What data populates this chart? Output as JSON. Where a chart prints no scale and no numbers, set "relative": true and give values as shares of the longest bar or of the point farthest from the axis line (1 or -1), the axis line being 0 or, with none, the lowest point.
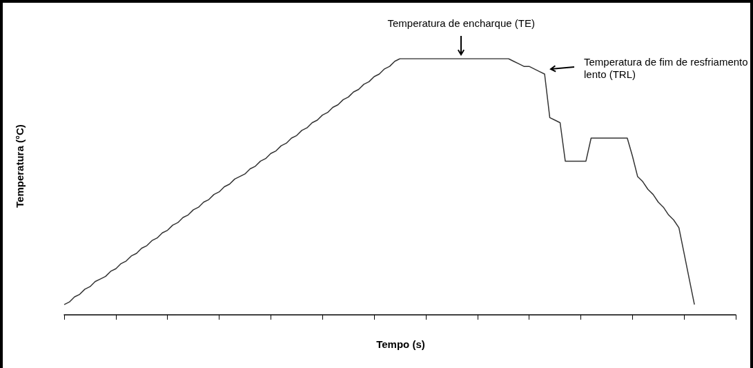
{
  "chart_data": {
    "type": "line",
    "xlabel": "Tempo (s)",
    "ylabel": "Temperatura (°C)",
    "relative": true,
    "grid": false,
    "marker": "none",
    "line_style": "solid",
    "categories": [
      null,
      null,
      null,
      null,
      null,
      null,
      null,
      null,
      null,
      null,
      null,
      null,
      null,
      null,
      null,
      null,
      null,
      null,
      null,
      null,
      null,
      null,
      null,
      null,
      null,
      null,
      null,
      null,
      null,
      null,
      null,
      null,
      null,
      null,
      null,
      null,
      null,
      null,
      null,
      null,
      null,
      null,
      null,
      null,
      null,
      null,
      null,
      null,
      null,
      null,
      null,
      null,
      null,
      null,
      null,
      null,
      null,
      null,
      null,
      null,
      null,
      null,
      null,
      null,
      null,
      null,
      null,
      null,
      null,
      null,
      null,
      null,
      null,
      null,
      null,
      null,
      null,
      null,
      null,
      null,
      null,
      null,
      null,
      null,
      null,
      null,
      null,
      null,
      null,
      null,
      null,
      null,
      null,
      null,
      null,
      null,
      null,
      null,
      null,
      null,
      null,
      null,
      null,
      null,
      null,
      null,
      null,
      null,
      null,
      null,
      null,
      null,
      null,
      null,
      null,
      null,
      null,
      null,
      null,
      null,
      null,
      null,
      null,
      null,
      null,
      null,
      null,
      null,
      null,
      null,
      null
    ],
    "series": [
      {
        "color": "#333333",
        "values": [
          0.04,
          0.05,
          0.07,
          0.08,
          0.1,
          0.11,
          0.13,
          0.14,
          0.15,
          0.17,
          0.18,
          0.2,
          0.21,
          0.23,
          0.24,
          0.26,
          0.27,
          0.29,
          0.3,
          0.32,
          0.33,
          0.35,
          0.36,
          0.38,
          0.39,
          0.41,
          0.42,
          0.44,
          0.45,
          0.47,
          0.48,
          0.5,
          0.51,
          0.53,
          0.54,
          0.55,
          0.57,
          0.58,
          0.6,
          0.61,
          0.63,
          0.64,
          0.66,
          0.67,
          0.69,
          0.7,
          0.72,
          0.73,
          0.75,
          0.76,
          0.78,
          0.79,
          0.81,
          0.82,
          0.84,
          0.85,
          0.87,
          0.88,
          0.9,
          0.91,
          0.93,
          0.94,
          0.96,
          0.97,
          0.99,
          1,
          1,
          1,
          1,
          1,
          1,
          1,
          1,
          1,
          1,
          1,
          1,
          1,
          1,
          1,
          1,
          1,
          1,
          1,
          1,
          1,
          1,
          0.99,
          0.98,
          0.97,
          0.97,
          0.96,
          0.95,
          0.94,
          0.77,
          0.76,
          0.75,
          0.6,
          0.6,
          0.6,
          0.6,
          0.6,
          0.69,
          0.69,
          0.69,
          0.69,
          0.69,
          0.69,
          0.69,
          0.69,
          0.62,
          0.54,
          0.52,
          0.49,
          0.47,
          0.44,
          0.42,
          0.39,
          0.37,
          0.34,
          0.24,
          0.14,
          0.04,
          null,
          null,
          null,
          null,
          null,
          null,
          null,
          null
        ]
      }
    ],
    "annotations": [
      "Temperatura de encharque (TE)",
      "Temperatura de fim de resfriamento lento (TRL)"
    ]
  }
}
